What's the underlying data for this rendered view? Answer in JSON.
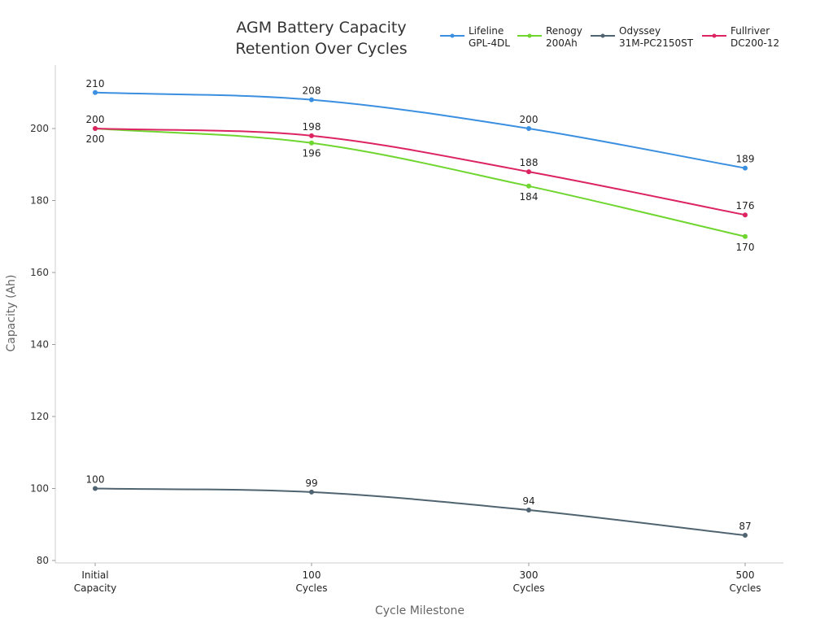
{
  "chart_data": {
    "type": "line",
    "title": [
      "AGM Battery Capacity",
      "Retention Over Cycles"
    ],
    "xlabel": "Cycle Milestone",
    "ylabel": "Capacity (Ah)",
    "categories": [
      [
        "Initial",
        "Capacity"
      ],
      [
        "100",
        "Cycles"
      ],
      [
        "300",
        "Cycles"
      ],
      [
        "500",
        "Cycles"
      ]
    ],
    "ylim": [
      80,
      218
    ],
    "yticks": [
      80,
      100,
      120,
      140,
      160,
      180,
      200
    ],
    "grid": false,
    "legend_position": "top-right",
    "series": [
      {
        "name": [
          "Lifeline",
          "GPL-4DL"
        ],
        "color": "#3a8fe0",
        "values": [
          210,
          208,
          200,
          189
        ]
      },
      {
        "name": [
          "Renogy",
          "200Ah"
        ],
        "color": "#6fd62f",
        "values": [
          200,
          196,
          184,
          170
        ]
      },
      {
        "name": [
          "Odyssey",
          "31M-PC2150ST"
        ],
        "color": "#4f6470",
        "values": [
          100,
          99,
          94,
          87
        ]
      },
      {
        "name": [
          "Fullriver",
          "DC200-12"
        ],
        "color": "#dc2463",
        "values": [
          200,
          198,
          188,
          176
        ]
      }
    ]
  }
}
